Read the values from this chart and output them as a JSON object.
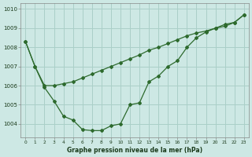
{
  "line1_x": [
    0,
    1,
    2,
    3,
    4,
    5,
    6,
    7,
    8,
    9,
    10,
    11,
    12,
    13,
    14,
    15,
    16,
    17,
    18,
    19,
    20,
    21,
    22,
    23
  ],
  "line1_y": [
    1008.3,
    1007.0,
    1006.0,
    1006.0,
    1006.1,
    1006.2,
    1006.4,
    1006.6,
    1006.8,
    1007.0,
    1007.2,
    1007.4,
    1007.6,
    1007.85,
    1008.0,
    1008.2,
    1008.4,
    1008.6,
    1008.75,
    1008.85,
    1009.0,
    1009.1,
    1009.3,
    1009.7
  ],
  "line2_x": [
    0,
    1,
    2,
    3,
    4,
    5,
    6,
    7,
    8,
    9,
    10,
    11,
    12,
    13,
    14,
    15,
    16,
    17,
    18,
    19,
    20,
    21,
    22,
    23
  ],
  "line2_y": [
    1008.3,
    1007.0,
    1005.9,
    1005.2,
    1004.4,
    1004.2,
    1003.7,
    1003.65,
    1003.65,
    1003.9,
    1004.0,
    1005.0,
    1005.1,
    1006.2,
    1006.5,
    1007.0,
    1007.3,
    1008.0,
    1008.5,
    1008.8,
    1009.0,
    1009.2,
    1009.3,
    1009.7
  ],
  "line_color": "#2d6a2d",
  "background_color": "#cde8e4",
  "grid_color": "#aacfc8",
  "xlabel": "Graphe pression niveau de la mer (hPa)",
  "ylim": [
    1003.3,
    1010.3
  ],
  "xlim": [
    -0.5,
    23.5
  ],
  "yticks": [
    1004,
    1005,
    1006,
    1007,
    1008,
    1009,
    1010
  ],
  "xticks": [
    0,
    1,
    2,
    3,
    4,
    5,
    6,
    7,
    8,
    9,
    10,
    11,
    12,
    13,
    14,
    15,
    16,
    17,
    18,
    19,
    20,
    21,
    22,
    23
  ]
}
